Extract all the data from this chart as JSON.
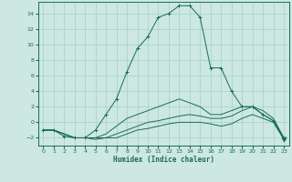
{
  "xlabel": "Humidex (Indice chaleur)",
  "bg_color": "#cce8e0",
  "grid_color": "#aad4cc",
  "line_color": "#1a6b5a",
  "xlim": [
    -0.5,
    23.5
  ],
  "ylim": [
    -3.0,
    15.5
  ],
  "xticks": [
    0,
    1,
    2,
    3,
    4,
    5,
    6,
    7,
    8,
    9,
    10,
    11,
    12,
    13,
    14,
    15,
    16,
    17,
    18,
    19,
    20,
    21,
    22,
    23
  ],
  "yticks": [
    -2,
    0,
    2,
    4,
    6,
    8,
    10,
    12,
    14
  ],
  "lines": [
    {
      "x": [
        0,
        1,
        2,
        3,
        4,
        5,
        6,
        7,
        8,
        9,
        10,
        11,
        12,
        13,
        14,
        15,
        16,
        17,
        18,
        19,
        20,
        21,
        22,
        23
      ],
      "y": [
        -1,
        -1,
        -1.8,
        -2,
        -2,
        -1,
        1,
        3,
        6.5,
        9.5,
        11,
        13.5,
        14,
        15,
        15,
        13.5,
        7,
        7,
        4,
        2,
        2,
        1,
        0.2,
        -2.2
      ],
      "marker": "+"
    },
    {
      "x": [
        0,
        1,
        2,
        3,
        4,
        5,
        6,
        7,
        8,
        9,
        10,
        11,
        12,
        13,
        14,
        15,
        16,
        17,
        18,
        19,
        20,
        21,
        22,
        23
      ],
      "y": [
        -1,
        -1,
        -1.5,
        -2,
        -2,
        -2,
        -1.5,
        -0.5,
        0.5,
        1,
        1.5,
        2,
        2.5,
        3,
        2.5,
        2,
        1,
        1,
        1.5,
        2,
        2,
        1.5,
        0.5,
        -2
      ],
      "marker": null
    },
    {
      "x": [
        0,
        1,
        2,
        3,
        4,
        5,
        6,
        7,
        8,
        9,
        10,
        11,
        12,
        13,
        14,
        15,
        16,
        17,
        18,
        19,
        20,
        21,
        22,
        23
      ],
      "y": [
        -1,
        -1,
        -1.5,
        -2,
        -2,
        -2,
        -2,
        -1.5,
        -1,
        -0.5,
        0,
        0.2,
        0.5,
        0.8,
        1,
        0.8,
        0.5,
        0.5,
        0.8,
        1.5,
        2,
        1,
        0.2,
        -2
      ],
      "marker": null
    },
    {
      "x": [
        0,
        1,
        2,
        3,
        4,
        5,
        6,
        7,
        8,
        9,
        10,
        11,
        12,
        13,
        14,
        15,
        16,
        17,
        18,
        19,
        20,
        21,
        22,
        23
      ],
      "y": [
        -1,
        -1,
        -1.5,
        -2,
        -2,
        -2.2,
        -2,
        -2,
        -1.5,
        -1,
        -0.8,
        -0.5,
        -0.2,
        0,
        0,
        0,
        -0.2,
        -0.5,
        -0.2,
        0.5,
        1,
        0.5,
        0.0,
        -2.2
      ],
      "marker": null
    }
  ],
  "triangle_x": 23,
  "triangle_y": -2.2
}
